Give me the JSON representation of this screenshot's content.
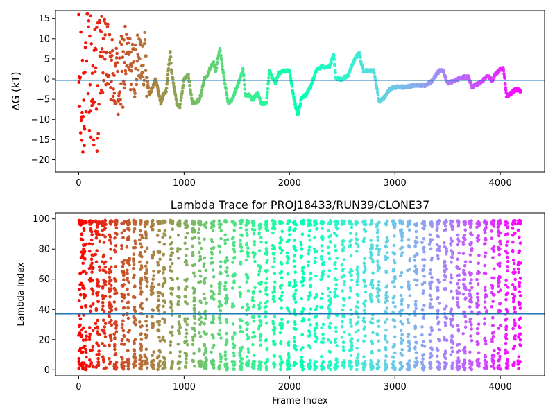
{
  "chart_data": [
    {
      "type": "scatter",
      "title": "",
      "xlabel": "",
      "ylabel": "ΔG (kT)",
      "xlim": [
        -220,
        4420
      ],
      "ylim": [
        -23,
        17
      ],
      "xticks": [
        0,
        1000,
        2000,
        3000,
        4000
      ],
      "yticks": [
        -20,
        -15,
        -10,
        -5,
        0,
        5,
        10,
        15
      ],
      "hline": -0.3,
      "hline_color": "#1f77b4",
      "colormap": "rainbow (reversed: early frames red, late frames violet)",
      "grid": false,
      "n_frames": 4200,
      "x_start": 0,
      "x_end": 4195,
      "keypoints": [
        [
          0,
          0
        ],
        [
          30,
          -8
        ],
        [
          70,
          5
        ],
        [
          150,
          -3
        ],
        [
          220,
          6
        ],
        [
          300,
          3
        ],
        [
          380,
          -2
        ],
        [
          450,
          6
        ],
        [
          520,
          2
        ],
        [
          590,
          5.5
        ],
        [
          630,
          5
        ],
        [
          670,
          -4
        ],
        [
          730,
          0
        ],
        [
          780,
          -6
        ],
        [
          800,
          -4
        ],
        [
          830,
          -3
        ],
        [
          870,
          7
        ],
        [
          880,
          2
        ],
        [
          930,
          -6
        ],
        [
          960,
          -7
        ],
        [
          1000,
          0
        ],
        [
          1040,
          1
        ],
        [
          1080,
          -6
        ],
        [
          1130,
          -5.5
        ],
        [
          1160,
          -4
        ],
        [
          1190,
          0
        ],
        [
          1220,
          1
        ],
        [
          1250,
          3
        ],
        [
          1280,
          4
        ],
        [
          1300,
          2
        ],
        [
          1340,
          7.5
        ],
        [
          1380,
          0
        ],
        [
          1420,
          -6
        ],
        [
          1460,
          -5
        ],
        [
          1500,
          -2
        ],
        [
          1530,
          0
        ],
        [
          1560,
          2.5
        ],
        [
          1580,
          -4
        ],
        [
          1620,
          -4
        ],
        [
          1650,
          -5
        ],
        [
          1700,
          -3.5
        ],
        [
          1730,
          -6
        ],
        [
          1780,
          -6
        ],
        [
          1810,
          2
        ],
        [
          1840,
          0
        ],
        [
          1870,
          -1
        ],
        [
          1900,
          1.5
        ],
        [
          1950,
          2
        ],
        [
          2000,
          2
        ],
        [
          2050,
          -6
        ],
        [
          2080,
          -9
        ],
        [
          2110,
          -5
        ],
        [
          2150,
          -4
        ],
        [
          2200,
          -2
        ],
        [
          2250,
          2
        ],
        [
          2300,
          3
        ],
        [
          2380,
          3
        ],
        [
          2420,
          6
        ],
        [
          2440,
          0
        ],
        [
          2500,
          0
        ],
        [
          2560,
          1
        ],
        [
          2600,
          4
        ],
        [
          2660,
          6.5
        ],
        [
          2700,
          2
        ],
        [
          2760,
          2
        ],
        [
          2800,
          2
        ],
        [
          2850,
          -5.5
        ],
        [
          2900,
          -4.5
        ],
        [
          2950,
          -2.5
        ],
        [
          3000,
          -2
        ],
        [
          3050,
          -2
        ],
        [
          3100,
          -2
        ],
        [
          3200,
          -1.5
        ],
        [
          3300,
          -1.5
        ],
        [
          3350,
          -0.5
        ],
        [
          3420,
          2
        ],
        [
          3460,
          2
        ],
        [
          3500,
          -1
        ],
        [
          3560,
          -0.5
        ],
        [
          3600,
          0
        ],
        [
          3660,
          0.5
        ],
        [
          3700,
          0.5
        ],
        [
          3730,
          -2
        ],
        [
          3800,
          -1
        ],
        [
          3850,
          0
        ],
        [
          3880,
          1
        ],
        [
          3920,
          -0.5
        ],
        [
          3950,
          1
        ],
        [
          4000,
          2.5
        ],
        [
          4030,
          2.5
        ],
        [
          4060,
          -4.5
        ],
        [
          4100,
          -3.5
        ],
        [
          4150,
          -2.5
        ],
        [
          4195,
          -3
        ]
      ]
    },
    {
      "type": "scatter",
      "title": "Lambda Trace for PROJ18433/RUN39/CLONE37",
      "xlabel": "Frame Index",
      "ylabel": "Lambda Index",
      "xlim": [
        -220,
        4420
      ],
      "ylim": [
        -4,
        104
      ],
      "xticks": [
        0,
        1000,
        2000,
        3000,
        4000
      ],
      "yticks": [
        0,
        20,
        40,
        60,
        80,
        100
      ],
      "hline": 37,
      "hline_color": "#1f77b4",
      "colormap": "rainbow (reversed: early frames red, late frames violet)",
      "grid": false,
      "n_frames": 4200,
      "value_range": [
        0,
        99
      ],
      "sweep_centers": [
        20,
        55,
        120,
        180,
        240,
        300,
        350,
        420,
        470,
        530,
        590,
        640,
        700,
        760,
        810,
        880,
        950,
        1020,
        1090,
        1150,
        1200,
        1270,
        1340,
        1400,
        1470,
        1540,
        1600,
        1660,
        1720,
        1780,
        1850,
        1920,
        1990,
        2050,
        2120,
        2190,
        2250,
        2310,
        2380,
        2440,
        2510,
        2580,
        2640,
        2710,
        2780,
        2840,
        2920,
        2990,
        3060,
        3130,
        3200,
        3270,
        3340,
        3410,
        3480,
        3540,
        3600,
        3660,
        3720,
        3790,
        3860,
        3930,
        3990,
        4060,
        4130,
        4180
      ]
    }
  ]
}
